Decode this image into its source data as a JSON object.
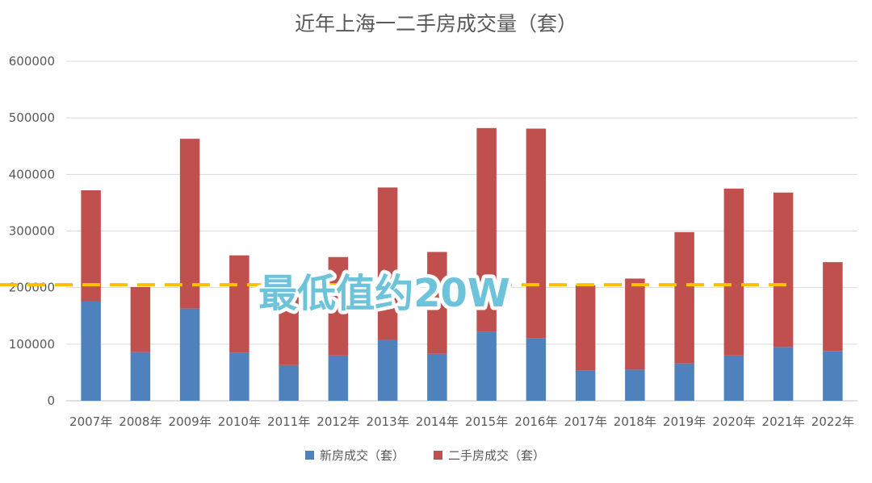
{
  "chart_data": {
    "type": "bar",
    "stacked": true,
    "title": "近年上海一二手房成交量（套）",
    "categories": [
      "2007年",
      "2008年",
      "2009年",
      "2010年",
      "2011年",
      "2012年",
      "2013年",
      "2014年",
      "2015年",
      "2016年",
      "2017年",
      "2018年",
      "2019年",
      "2020年",
      "2021年",
      "2022年"
    ],
    "series": [
      {
        "name": "新房成交（套）",
        "color": "#4f81bd",
        "values": [
          176000,
          86000,
          163000,
          85000,
          63000,
          80000,
          107000,
          83000,
          122000,
          111000,
          53000,
          55000,
          66000,
          80000,
          95000,
          88000
        ]
      },
      {
        "name": "二手房成交（套）",
        "color": "#c0504d",
        "values": [
          196000,
          115000,
          300000,
          172000,
          120000,
          174000,
          270000,
          180000,
          360000,
          370000,
          151000,
          161000,
          232000,
          295000,
          273000,
          157000
        ]
      }
    ],
    "ylim": [
      0,
      600000
    ],
    "yticks": [
      0,
      100000,
      200000,
      300000,
      400000,
      500000,
      600000
    ],
    "grid": true,
    "legend_position": "bottom",
    "reference_line": {
      "value": 205000,
      "color": "#ffc000",
      "style": "dashed"
    },
    "annotation": "最低值约20W"
  }
}
